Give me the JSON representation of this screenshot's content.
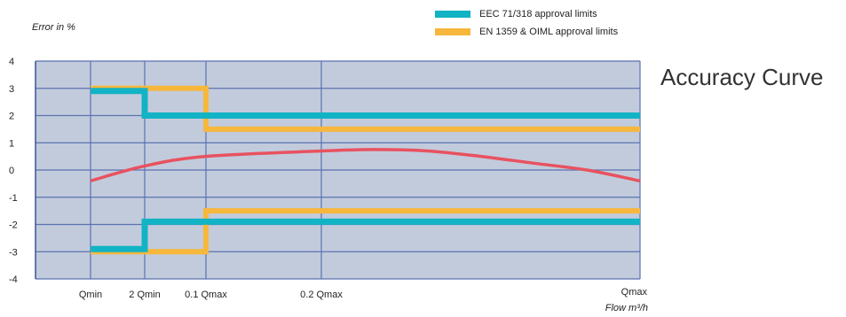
{
  "chart_data": {
    "type": "line",
    "title": "Accuracy Curve",
    "ylabel": "Error in %",
    "xlabel": "Flow m³/h",
    "ylim": [
      -4,
      4
    ],
    "y_ticks": [
      "4",
      "3",
      "2",
      "1",
      "0",
      "-1",
      "-2",
      "-3",
      "-4"
    ],
    "y_tick_values": [
      4,
      3,
      2,
      1,
      0,
      -1,
      -2,
      -3,
      -4
    ],
    "x_ticks": [
      "Qmin",
      "2 Qmin",
      "0.1 Qmax",
      "0.2 Qmax",
      "Qmax"
    ],
    "x_tick_values": [
      1,
      2,
      3,
      4,
      10
    ],
    "xlim": [
      0,
      10
    ],
    "grid": true,
    "legend_position": "top-right",
    "series": [
      {
        "name": "EEC 71/318 approval limits",
        "color": "#12b3c4",
        "upper": {
          "x": [
            1,
            2,
            2,
            10
          ],
          "y": [
            2.9,
            2.9,
            2,
            2
          ]
        },
        "lower": {
          "x": [
            1,
            2,
            2,
            10
          ],
          "y": [
            -2.9,
            -2.9,
            -1.9,
            -1.9
          ]
        }
      },
      {
        "name": "EN 1359 & OIML approval limits",
        "color": "#f6b73c",
        "upper": {
          "x": [
            1,
            3,
            3,
            10
          ],
          "y": [
            3,
            3,
            1.5,
            1.5
          ]
        },
        "lower": {
          "x": [
            1,
            3,
            3,
            10
          ],
          "y": [
            -3,
            -3,
            -1.5,
            -1.5
          ]
        }
      },
      {
        "name": "",
        "color": "#e8525f",
        "x": [
          1,
          2,
          3,
          4,
          5,
          6,
          7,
          8,
          9,
          10
        ],
        "y": [
          -0.4,
          0.15,
          0.5,
          0.7,
          0.75,
          0.7,
          0.5,
          0.25,
          0.0,
          -0.4
        ]
      }
    ]
  }
}
